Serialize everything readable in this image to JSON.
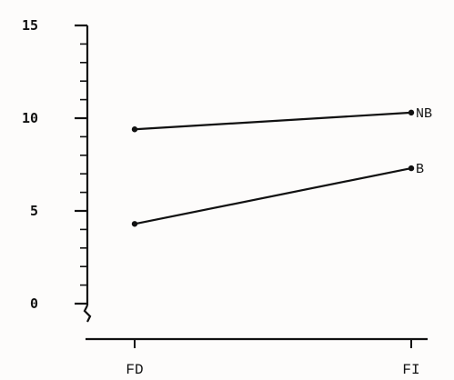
{
  "chart_data": {
    "type": "line",
    "categories": [
      "FD",
      "FI"
    ],
    "y_ticks": [
      "0",
      "5",
      "10",
      "15"
    ],
    "ylim": [
      0,
      15
    ],
    "grid": false,
    "legend": "none",
    "series": [
      {
        "name": "NB",
        "values": [
          9.4,
          10.3
        ]
      },
      {
        "name": "B",
        "values": [
          4.3,
          7.3
        ]
      }
    ]
  }
}
